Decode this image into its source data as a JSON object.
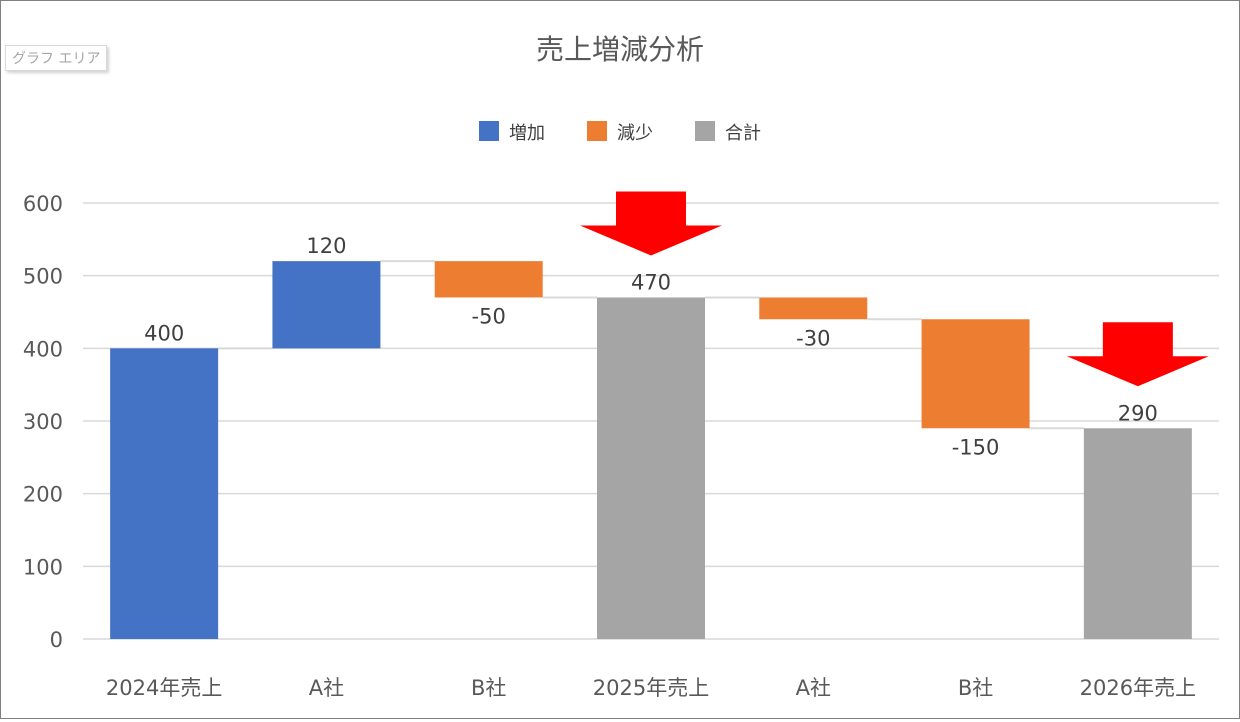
{
  "chart_area_tooltip": "グラフ エリア",
  "colors": {
    "increase": "#4472C4",
    "decrease": "#ED7D31",
    "total": "#A5A5A5",
    "arrow": "#FF0000",
    "gridline": "#D9D9D9",
    "connector": "#D9D9D9"
  },
  "chart_data": {
    "type": "bar",
    "subtype": "waterfall",
    "title": "売上増減分析",
    "legend": {
      "position": "top",
      "entries": [
        {
          "key": "increase",
          "label": "増加"
        },
        {
          "key": "decrease",
          "label": "減少"
        },
        {
          "key": "total",
          "label": "合計"
        }
      ]
    },
    "categories": [
      "2024年売上",
      "A社",
      "B社",
      "2025年売上",
      "A社",
      "B社",
      "2026年売上"
    ],
    "values": [
      400,
      120,
      -50,
      470,
      -30,
      -150,
      290
    ],
    "kinds": [
      "total-increase",
      "increase",
      "decrease",
      "total",
      "decrease",
      "decrease",
      "total"
    ],
    "data_labels": [
      "400",
      "120",
      "-50",
      "470",
      "-30",
      "-150",
      "290"
    ],
    "ylim": [
      0,
      600
    ],
    "yticks": [
      0,
      100,
      200,
      300,
      400,
      500,
      600
    ],
    "grid": true,
    "annotations": [
      {
        "type": "down-arrow",
        "category_index": 3
      },
      {
        "type": "down-arrow",
        "category_index": 6
      }
    ]
  }
}
